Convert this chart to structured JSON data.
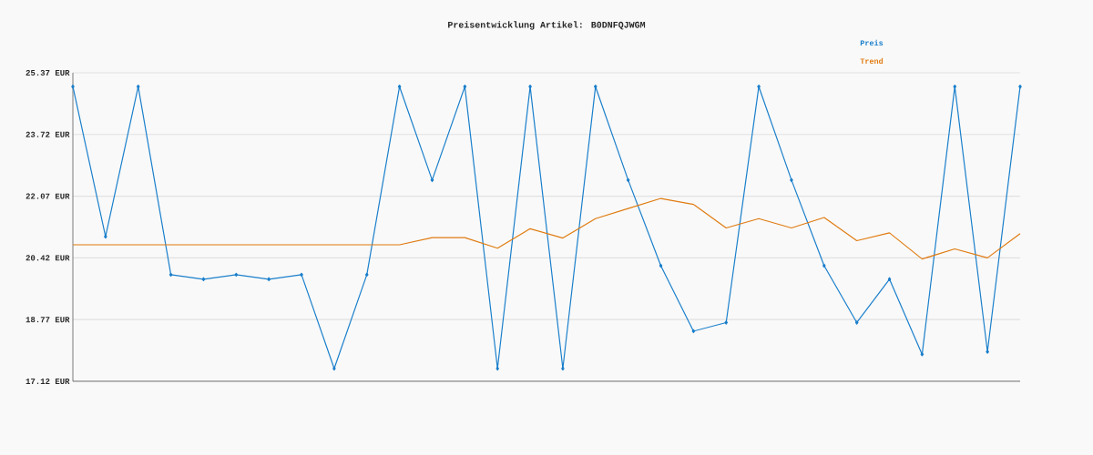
{
  "chart_data": {
    "type": "line",
    "title": "Preisentwicklung Artikel: B0DNFQJWGM",
    "categories": [
      null,
      null,
      null,
      null,
      null,
      null,
      null,
      null,
      null,
      null,
      null,
      null,
      null,
      null,
      null,
      null,
      null,
      null,
      null,
      null,
      null,
      null,
      null,
      null,
      null,
      null,
      null,
      null,
      null,
      null
    ],
    "series": [
      {
        "name": "Preis",
        "color": "#1a7fcb",
        "marker": "diamond",
        "values": [
          25.0,
          20.99,
          25.0,
          19.97,
          19.85,
          19.97,
          19.85,
          19.97,
          17.46,
          19.97,
          25.0,
          22.5,
          25.0,
          17.46,
          25.0,
          17.46,
          25.0,
          22.5,
          20.21,
          18.46,
          18.69,
          25.0,
          22.5,
          20.21,
          18.69,
          19.85,
          17.84,
          25.0,
          17.91,
          25.0
        ]
      },
      {
        "name": "Trend",
        "color": "#e07b10",
        "marker": "none",
        "values": [
          20.77,
          20.77,
          20.77,
          20.77,
          20.77,
          20.77,
          20.77,
          20.77,
          20.77,
          20.77,
          20.77,
          20.96,
          20.96,
          20.68,
          21.2,
          20.95,
          21.47,
          21.74,
          22.01,
          21.85,
          21.22,
          21.47,
          21.22,
          21.5,
          20.88,
          21.09,
          20.39,
          20.66,
          20.42,
          21.07
        ]
      }
    ],
    "ylim": [
      17.12,
      25.37
    ],
    "yticks": [
      {
        "value": 17.12,
        "label": "17.12 EUR"
      },
      {
        "value": 18.77,
        "label": "18.77 EUR"
      },
      {
        "value": 20.42,
        "label": "20.42 EUR"
      },
      {
        "value": 22.07,
        "label": "22.07 EUR"
      },
      {
        "value": 23.72,
        "label": "23.72 EUR"
      },
      {
        "value": 25.37,
        "label": "25.37 EUR"
      }
    ],
    "grid": "y",
    "legend": "top right",
    "tick_labels": "y"
  }
}
